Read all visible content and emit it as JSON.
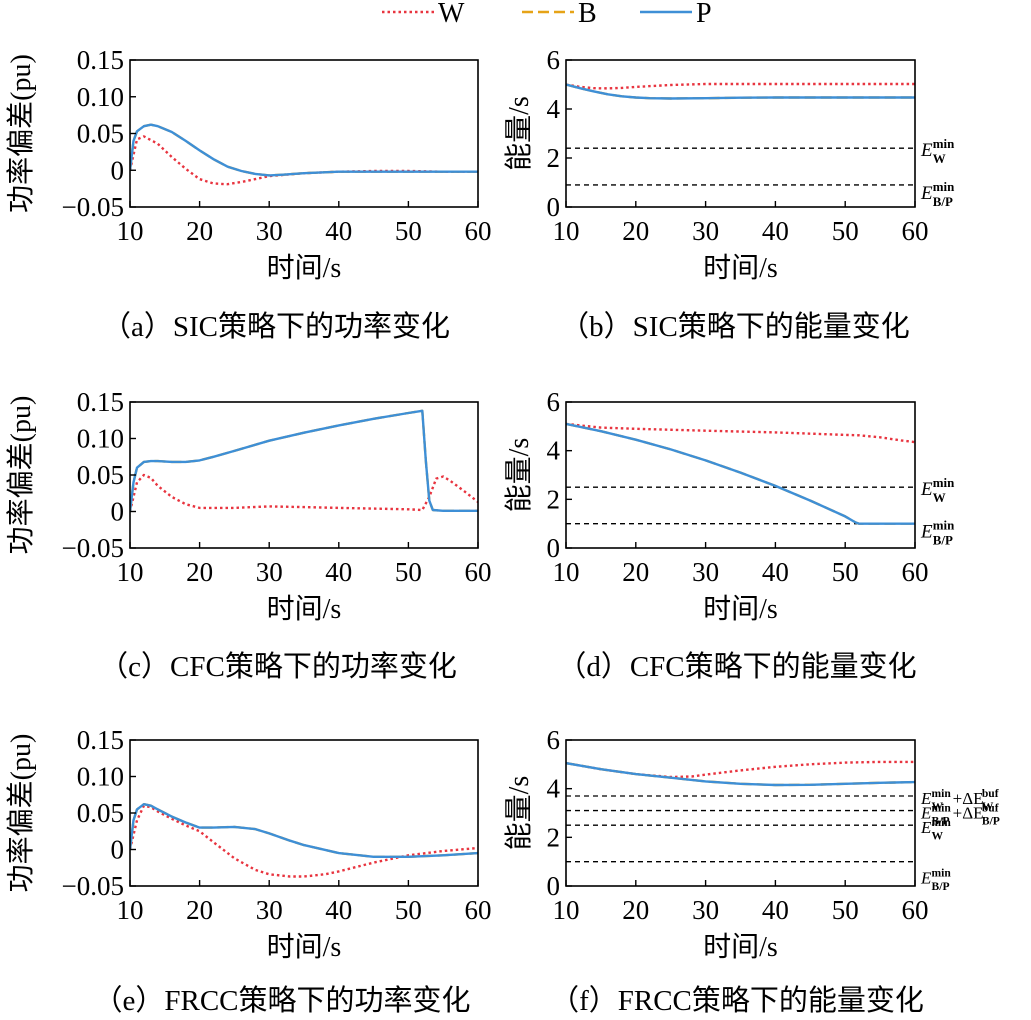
{
  "legend": [
    {
      "name": "W",
      "color": "#e8343f",
      "dash": "dot"
    },
    {
      "name": "B",
      "color": "#e6a317",
      "dash": "dash"
    },
    {
      "name": "P",
      "color": "#3e8fd6",
      "dash": "solid"
    }
  ],
  "chart_data": [
    {
      "id": "a",
      "type": "line",
      "caption": "（a）SIC策略下的功率变化",
      "xlabel": "时间/s",
      "ylabel": "功率偏差(pu)",
      "xlim": [
        10,
        60
      ],
      "ylim": [
        -0.05,
        0.15
      ],
      "xticks": [
        10,
        20,
        30,
        40,
        50,
        60
      ],
      "yticks": [
        -0.05,
        0,
        0.05,
        0.1,
        0.15
      ],
      "ytick_labels": [
        "−0.05",
        "0",
        "0.05",
        "0.10",
        "0.15"
      ],
      "series": [
        {
          "name": "W",
          "x": [
            10,
            11,
            12,
            14,
            16,
            18,
            20,
            22,
            24,
            26,
            28,
            30,
            35,
            40,
            45,
            50,
            55,
            60
          ],
          "y": [
            0,
            0.042,
            0.046,
            0.036,
            0.018,
            0.002,
            -0.012,
            -0.018,
            -0.019,
            -0.016,
            -0.012,
            -0.008,
            -0.004,
            -0.002,
            -0.001,
            -0.001,
            -0.002,
            -0.002
          ]
        },
        {
          "name": "B",
          "x": [
            10,
            10.5,
            11,
            12,
            13,
            14,
            16,
            18,
            20,
            22,
            24,
            26,
            28,
            30,
            32,
            35,
            40,
            45,
            50,
            55,
            60
          ],
          "y": [
            0,
            0.04,
            0.053,
            0.06,
            0.062,
            0.06,
            0.052,
            0.04,
            0.027,
            0.015,
            0.005,
            -0.001,
            -0.005,
            -0.007,
            -0.006,
            -0.004,
            -0.002,
            -0.002,
            -0.002,
            -0.002,
            -0.002
          ]
        },
        {
          "name": "P",
          "x": [
            10,
            10.5,
            11,
            12,
            13,
            14,
            16,
            18,
            20,
            22,
            24,
            26,
            28,
            30,
            32,
            35,
            40,
            45,
            50,
            55,
            60
          ],
          "y": [
            0,
            0.04,
            0.053,
            0.06,
            0.062,
            0.06,
            0.052,
            0.04,
            0.027,
            0.015,
            0.005,
            -0.001,
            -0.005,
            -0.007,
            -0.006,
            -0.004,
            -0.002,
            -0.002,
            -0.002,
            -0.002,
            -0.002
          ]
        }
      ],
      "hlines": []
    },
    {
      "id": "b",
      "type": "line",
      "caption": "（b）SIC策略下的能量变化",
      "xlabel": "时间/s",
      "ylabel": "能量/s",
      "xlim": [
        10,
        60
      ],
      "ylim": [
        0,
        6
      ],
      "xticks": [
        10,
        20,
        30,
        40,
        50,
        60
      ],
      "yticks": [
        0,
        2,
        4,
        6
      ],
      "ytick_labels": [
        "0",
        "2",
        "4",
        "6"
      ],
      "series": [
        {
          "name": "W",
          "x": [
            10,
            12,
            14,
            16,
            18,
            20,
            25,
            30,
            40,
            50,
            60
          ],
          "y": [
            5.0,
            4.9,
            4.85,
            4.84,
            4.86,
            4.9,
            4.98,
            5.02,
            5.02,
            5.02,
            5.02
          ]
        },
        {
          "name": "B",
          "x": [
            10,
            12,
            14,
            16,
            18,
            20,
            22,
            25,
            30,
            35,
            40,
            50,
            60
          ],
          "y": [
            5.0,
            4.85,
            4.72,
            4.6,
            4.52,
            4.47,
            4.44,
            4.43,
            4.44,
            4.46,
            4.47,
            4.47,
            4.47
          ]
        },
        {
          "name": "P",
          "x": [
            10,
            12,
            14,
            16,
            18,
            20,
            22,
            25,
            30,
            35,
            40,
            50,
            60
          ],
          "y": [
            5.0,
            4.85,
            4.72,
            4.6,
            4.52,
            4.47,
            4.44,
            4.43,
            4.44,
            4.46,
            4.47,
            4.47,
            4.47
          ]
        }
      ],
      "hlines": [
        {
          "y": 2.4,
          "label": {
            "base": "E",
            "sub": "W",
            "sup": "min"
          }
        },
        {
          "y": 0.9,
          "label": {
            "base": "E",
            "sub": "B/P",
            "sup": "min"
          }
        }
      ]
    },
    {
      "id": "c",
      "type": "line",
      "caption": "（c）CFC策略下的功率变化",
      "xlabel": "时间/s",
      "ylabel": "功率偏差(pu)",
      "xlim": [
        10,
        60
      ],
      "ylim": [
        -0.05,
        0.15
      ],
      "xticks": [
        10,
        20,
        30,
        40,
        50,
        60
      ],
      "yticks": [
        -0.05,
        0,
        0.05,
        0.1,
        0.15
      ],
      "ytick_labels": [
        "−0.05",
        "0",
        "0.05",
        "0.10",
        "0.15"
      ],
      "series": [
        {
          "name": "W",
          "x": [
            10,
            11,
            12,
            13,
            14,
            16,
            18,
            20,
            25,
            30,
            35,
            40,
            45,
            50,
            52,
            53,
            54,
            55,
            56,
            58,
            60
          ],
          "y": [
            0,
            0.04,
            0.05,
            0.046,
            0.035,
            0.02,
            0.01,
            0.005,
            0.005,
            0.007,
            0.006,
            0.005,
            0.004,
            0.003,
            0.002,
            0.02,
            0.045,
            0.048,
            0.042,
            0.028,
            0.013
          ]
        },
        {
          "name": "B",
          "x": [
            10,
            10.5,
            11,
            12,
            13,
            14,
            16,
            18,
            20,
            22,
            25,
            30,
            35,
            40,
            45,
            50,
            52,
            52.5,
            53,
            53.5,
            55,
            60
          ],
          "y": [
            0,
            0.04,
            0.06,
            0.068,
            0.069,
            0.069,
            0.068,
            0.068,
            0.07,
            0.075,
            0.083,
            0.097,
            0.108,
            0.118,
            0.127,
            0.135,
            0.138,
            0.07,
            0.015,
            0.002,
            0.001,
            0.001
          ]
        },
        {
          "name": "P",
          "x": [
            10,
            10.5,
            11,
            12,
            13,
            14,
            16,
            18,
            20,
            22,
            25,
            30,
            35,
            40,
            45,
            50,
            52,
            52.5,
            53,
            53.5,
            55,
            60
          ],
          "y": [
            0,
            0.04,
            0.06,
            0.068,
            0.069,
            0.069,
            0.068,
            0.068,
            0.07,
            0.075,
            0.083,
            0.097,
            0.108,
            0.118,
            0.127,
            0.135,
            0.138,
            0.07,
            0.015,
            0.002,
            0.001,
            0.001
          ]
        }
      ],
      "hlines": []
    },
    {
      "id": "d",
      "type": "line",
      "caption": "（d）CFC策略下的能量变化",
      "xlabel": "时间/s",
      "ylabel": "能量/s",
      "xlim": [
        10,
        60
      ],
      "ylim": [
        0,
        6
      ],
      "xticks": [
        10,
        20,
        30,
        40,
        50,
        60
      ],
      "yticks": [
        0,
        2,
        4,
        6
      ],
      "ytick_labels": [
        "0",
        "2",
        "4",
        "6"
      ],
      "series": [
        {
          "name": "W",
          "x": [
            10,
            15,
            20,
            30,
            40,
            50,
            52,
            55,
            58,
            60
          ],
          "y": [
            5.1,
            4.95,
            4.9,
            4.82,
            4.75,
            4.65,
            4.63,
            4.55,
            4.42,
            4.35
          ]
        },
        {
          "name": "B",
          "x": [
            10,
            15,
            20,
            25,
            30,
            35,
            40,
            45,
            50,
            51.5,
            52,
            60
          ],
          "y": [
            5.1,
            4.8,
            4.45,
            4.05,
            3.6,
            3.1,
            2.55,
            1.95,
            1.3,
            1.05,
            1.0,
            1.0
          ]
        },
        {
          "name": "P",
          "x": [
            10,
            15,
            20,
            25,
            30,
            35,
            40,
            45,
            50,
            51.5,
            52,
            60
          ],
          "y": [
            5.1,
            4.8,
            4.45,
            4.05,
            3.6,
            3.1,
            2.55,
            1.95,
            1.3,
            1.05,
            1.0,
            1.0
          ]
        }
      ],
      "hlines": [
        {
          "y": 2.5,
          "label": {
            "base": "E",
            "sub": "W",
            "sup": "min"
          }
        },
        {
          "y": 1.0,
          "label": {
            "base": "E",
            "sub": "B/P",
            "sup": "min"
          }
        }
      ]
    },
    {
      "id": "e",
      "type": "line",
      "caption": "（e）FRCC策略下的功率变化",
      "xlabel": "时间/s",
      "ylabel": "功率偏差(pu)",
      "xlim": [
        10,
        60
      ],
      "ylim": [
        -0.05,
        0.15
      ],
      "xticks": [
        10,
        20,
        30,
        40,
        50,
        60
      ],
      "yticks": [
        -0.05,
        0,
        0.05,
        0.1,
        0.15
      ],
      "ytick_labels": [
        "−0.05",
        "0",
        "0.05",
        "0.10",
        "0.15"
      ],
      "series": [
        {
          "name": "W",
          "x": [
            10,
            11,
            12,
            13,
            14,
            16,
            18,
            20,
            22,
            25,
            28,
            30,
            33,
            35,
            38,
            40,
            45,
            50,
            55,
            60
          ],
          "y": [
            0,
            0.04,
            0.06,
            0.058,
            0.052,
            0.042,
            0.033,
            0.025,
            0.01,
            -0.012,
            -0.028,
            -0.034,
            -0.037,
            -0.037,
            -0.034,
            -0.03,
            -0.018,
            -0.008,
            -0.002,
            0.002
          ]
        },
        {
          "name": "B",
          "x": [
            10,
            10.5,
            11,
            12,
            13,
            14,
            16,
            18,
            20,
            22,
            25,
            28,
            30,
            33,
            35,
            40,
            45,
            50,
            55,
            60
          ],
          "y": [
            0,
            0.04,
            0.055,
            0.062,
            0.06,
            0.055,
            0.045,
            0.037,
            0.03,
            0.03,
            0.031,
            0.028,
            0.022,
            0.012,
            0.006,
            -0.005,
            -0.01,
            -0.01,
            -0.008,
            -0.005
          ]
        },
        {
          "name": "P",
          "x": [
            10,
            10.5,
            11,
            12,
            13,
            14,
            16,
            18,
            20,
            22,
            25,
            28,
            30,
            33,
            35,
            40,
            45,
            50,
            55,
            60
          ],
          "y": [
            0,
            0.04,
            0.055,
            0.062,
            0.06,
            0.055,
            0.045,
            0.037,
            0.03,
            0.03,
            0.031,
            0.028,
            0.022,
            0.012,
            0.006,
            -0.005,
            -0.01,
            -0.01,
            -0.008,
            -0.005
          ]
        }
      ],
      "hlines": []
    },
    {
      "id": "f",
      "type": "line",
      "caption": "（f）FRCC策略下的能量变化",
      "xlabel": "时间/s",
      "ylabel": "能量/s",
      "xlim": [
        10,
        60
      ],
      "ylim": [
        0,
        6
      ],
      "xticks": [
        10,
        20,
        30,
        40,
        50,
        60
      ],
      "yticks": [
        0,
        2,
        4,
        6
      ],
      "ytick_labels": [
        "0",
        "2",
        "4",
        "6"
      ],
      "series": [
        {
          "name": "W",
          "x": [
            10,
            15,
            20,
            25,
            28,
            30,
            35,
            40,
            45,
            50,
            55,
            60
          ],
          "y": [
            5.05,
            4.8,
            4.6,
            4.48,
            4.5,
            4.58,
            4.75,
            4.9,
            5.0,
            5.07,
            5.1,
            5.1
          ]
        },
        {
          "name": "B",
          "x": [
            10,
            15,
            20,
            25,
            30,
            35,
            40,
            45,
            50,
            55,
            60
          ],
          "y": [
            5.05,
            4.8,
            4.6,
            4.45,
            4.3,
            4.2,
            4.15,
            4.16,
            4.2,
            4.24,
            4.27
          ]
        },
        {
          "name": "P",
          "x": [
            10,
            15,
            20,
            25,
            30,
            35,
            40,
            45,
            50,
            55,
            60
          ],
          "y": [
            5.05,
            4.8,
            4.6,
            4.45,
            4.3,
            4.2,
            4.15,
            4.16,
            4.2,
            4.24,
            4.27
          ]
        }
      ],
      "hlines": [
        {
          "y": 3.7,
          "label": {
            "base": "E",
            "sub": "W",
            "sup": "min",
            "extra": {
              "op": "+ΔE",
              "sub": "W",
              "sup": "buf"
            }
          }
        },
        {
          "y": 3.1,
          "label": {
            "base": "E",
            "sub": "B/P",
            "sup": "min",
            "extra": {
              "op": "+ΔE",
              "sub": "B/P",
              "sup": "buf"
            }
          }
        },
        {
          "y": 2.5,
          "label": {
            "base": "E",
            "sub": "W",
            "sup": "min"
          }
        },
        {
          "y": 1.0,
          "label": {
            "base": "E",
            "sub": "B/P",
            "sup": "min"
          }
        }
      ]
    }
  ]
}
